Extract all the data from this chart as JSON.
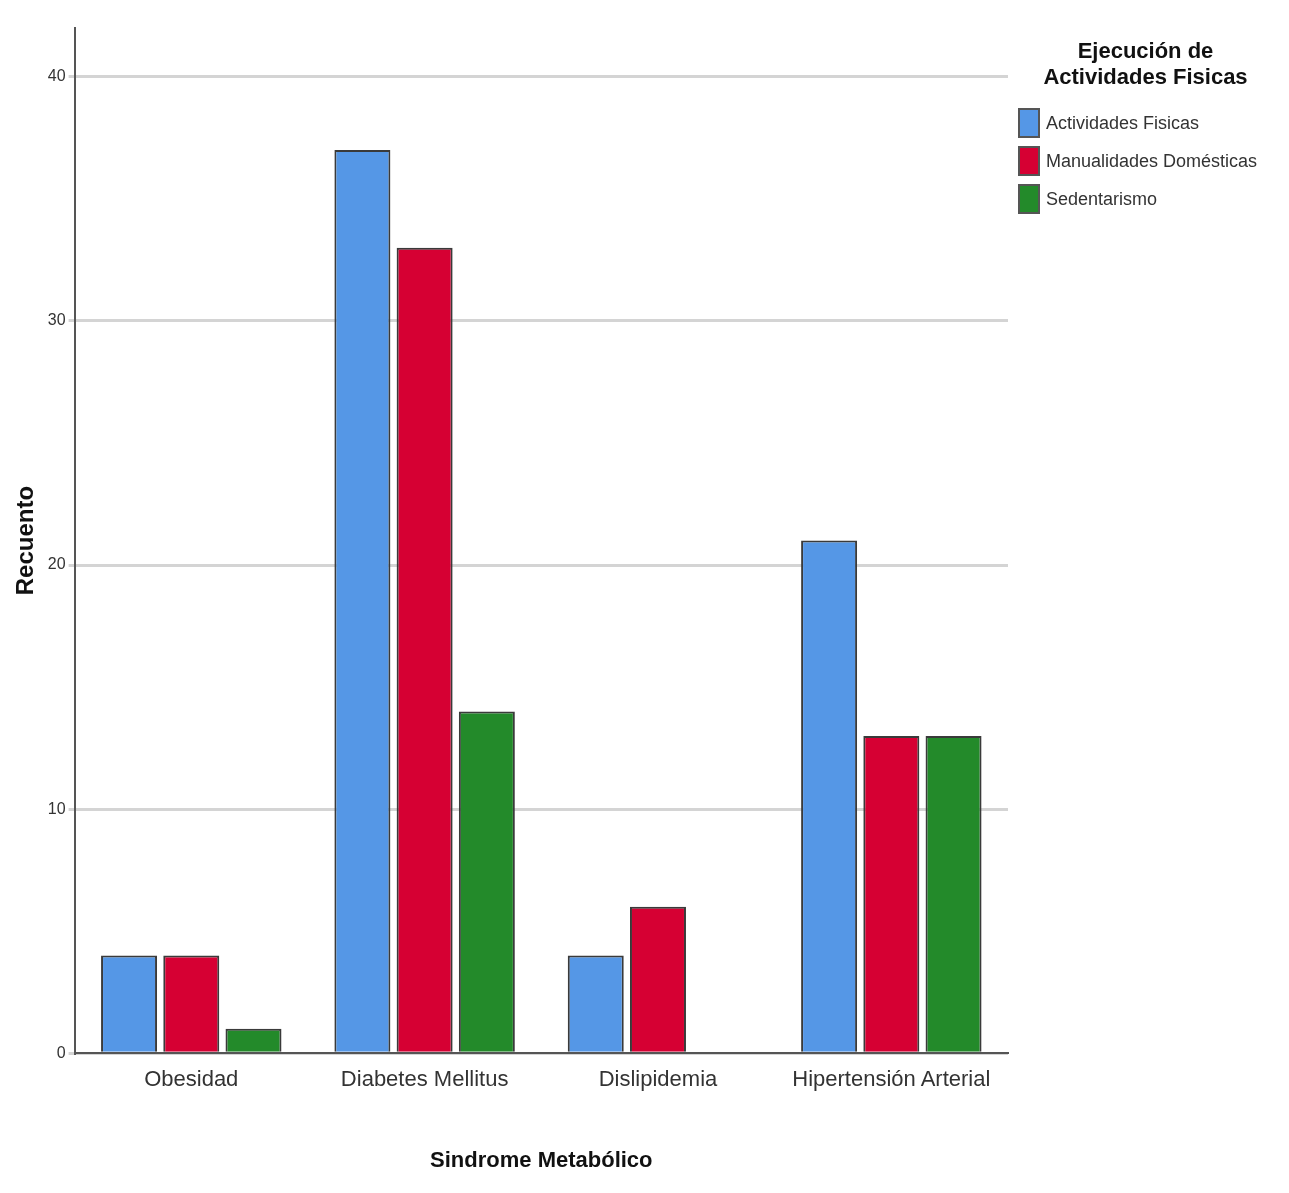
{
  "chart_data": {
    "type": "bar",
    "xlabel": "Sindrome Metabólico",
    "ylabel": "Recuento",
    "legend_title": "Ejecución de Actividades Fisicas",
    "categories": [
      "Obesidad",
      "Diabetes Mellitus",
      "Dislipidemia",
      "Hipertensión Arterial"
    ],
    "series": [
      {
        "name": "Actividades Fisicas",
        "color": "#5597e6",
        "values": [
          4,
          37,
          4,
          21
        ]
      },
      {
        "name": "Manualidades Domésticas",
        "color": "#d60033",
        "values": [
          4,
          33,
          6,
          13
        ]
      },
      {
        "name": "Sedentarismo",
        "color": "#238a2a",
        "values": [
          1,
          14,
          0,
          13
        ]
      }
    ],
    "ylim": [
      0,
      42
    ],
    "yticks": [
      0,
      10,
      20,
      30,
      40
    ],
    "grid": "y",
    "legend": "top right"
  }
}
